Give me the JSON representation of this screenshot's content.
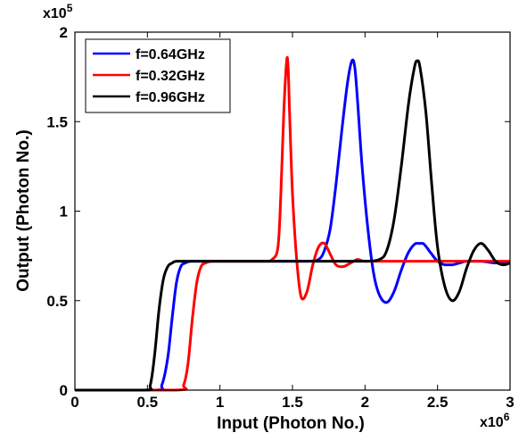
{
  "chart_data": {
    "type": "line",
    "xlabel": "Input (Photon No.)",
    "ylabel": "Output (Photon No.)",
    "x_multiplier": "x10",
    "x_exponent": "6",
    "y_multiplier": "x10",
    "y_exponent": "5",
    "xlim": [
      0,
      3
    ],
    "ylim": [
      0,
      2
    ],
    "x_ticks": [
      0,
      0.5,
      1,
      1.5,
      2,
      2.5,
      3
    ],
    "x_tick_labels": [
      "0",
      "0.5",
      "1",
      "1.5",
      "2",
      "2.5",
      "3"
    ],
    "y_ticks": [
      0,
      0.5,
      1,
      1.5,
      2
    ],
    "y_tick_labels": [
      "0",
      "0.5",
      "1",
      "1.5",
      "2"
    ],
    "grid": false,
    "legend_position": "top-left",
    "series": [
      {
        "name": "f=0.64GHz",
        "color": "#0000ff",
        "x": [
          0,
          0.55,
          0.6,
          0.64,
          0.67,
          0.7,
          0.73,
          0.76,
          0.8,
          0.9,
          1.0,
          1.2,
          1.4,
          1.6,
          1.68,
          1.72,
          1.76,
          1.8,
          1.84,
          1.88,
          1.91,
          1.93,
          1.95,
          1.98,
          2.02,
          2.06,
          2.1,
          2.15,
          2.2,
          2.25,
          2.3,
          2.35,
          2.4,
          2.45,
          2.5,
          2.55,
          2.6,
          2.65,
          2.7,
          2.8,
          2.9,
          3.0
        ],
        "y": [
          0,
          0,
          0.03,
          0.18,
          0.4,
          0.6,
          0.69,
          0.71,
          0.72,
          0.72,
          0.72,
          0.72,
          0.72,
          0.72,
          0.73,
          0.78,
          0.9,
          1.15,
          1.45,
          1.72,
          1.84,
          1.8,
          1.6,
          1.25,
          0.9,
          0.65,
          0.53,
          0.49,
          0.55,
          0.67,
          0.77,
          0.82,
          0.82,
          0.77,
          0.72,
          0.7,
          0.7,
          0.71,
          0.72,
          0.72,
          0.71,
          0.71
        ]
      },
      {
        "name": "f=0.32GHz",
        "color": "#ff0000",
        "x": [
          0,
          0.7,
          0.75,
          0.78,
          0.81,
          0.84,
          0.87,
          0.9,
          0.95,
          1.1,
          1.3,
          1.36,
          1.4,
          1.42,
          1.44,
          1.46,
          1.47,
          1.48,
          1.5,
          1.53,
          1.56,
          1.6,
          1.64,
          1.68,
          1.72,
          1.76,
          1.8,
          1.85,
          1.9,
          1.95,
          2.0,
          2.2,
          2.5,
          2.8,
          3.0
        ],
        "y": [
          0,
          0,
          0.03,
          0.15,
          0.4,
          0.6,
          0.69,
          0.71,
          0.72,
          0.72,
          0.72,
          0.73,
          0.8,
          1.1,
          1.55,
          1.84,
          1.8,
          1.55,
          1.1,
          0.72,
          0.52,
          0.55,
          0.7,
          0.8,
          0.82,
          0.76,
          0.7,
          0.69,
          0.71,
          0.73,
          0.72,
          0.72,
          0.72,
          0.72,
          0.72
        ]
      },
      {
        "name": "f=0.96GHz",
        "color": "#000000",
        "x": [
          0,
          0.48,
          0.52,
          0.55,
          0.58,
          0.61,
          0.64,
          0.67,
          0.7,
          0.8,
          1.0,
          1.4,
          1.8,
          2.0,
          2.1,
          2.15,
          2.2,
          2.25,
          2.3,
          2.34,
          2.36,
          2.38,
          2.42,
          2.46,
          2.5,
          2.55,
          2.6,
          2.65,
          2.7,
          2.75,
          2.8,
          2.85,
          2.9,
          2.95,
          3.0
        ],
        "y": [
          0,
          0,
          0.03,
          0.2,
          0.45,
          0.62,
          0.69,
          0.71,
          0.72,
          0.72,
          0.72,
          0.72,
          0.72,
          0.72,
          0.73,
          0.78,
          0.95,
          1.25,
          1.6,
          1.8,
          1.84,
          1.8,
          1.55,
          1.15,
          0.8,
          0.58,
          0.5,
          0.55,
          0.68,
          0.78,
          0.82,
          0.78,
          0.72,
          0.7,
          0.71
        ]
      }
    ]
  }
}
